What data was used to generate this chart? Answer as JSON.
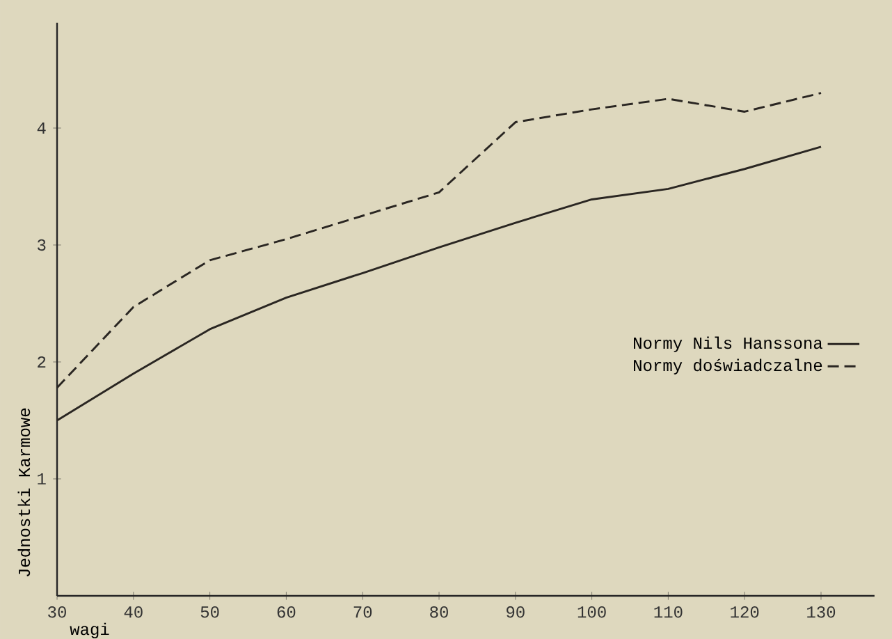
{
  "chart_data": {
    "type": "line",
    "xlabel": "wagi",
    "ylabel": "Jednostki Karmowe",
    "x": [
      30,
      40,
      50,
      60,
      70,
      80,
      90,
      100,
      110,
      120,
      130
    ],
    "series": [
      {
        "name": "Normy Nils Hanssona",
        "color": "#2a2622",
        "line_style": "solid",
        "values": [
          1.5,
          1.9,
          2.28,
          2.55,
          2.76,
          2.98,
          3.19,
          3.39,
          3.48,
          3.65,
          3.84
        ]
      },
      {
        "name": "Normy doświadczalne",
        "color": "#2a2622",
        "line_style": "dashed",
        "values": [
          1.78,
          2.47,
          2.87,
          3.05,
          3.25,
          3.45,
          4.05,
          4.16,
          4.25,
          4.14,
          4.3
        ]
      }
    ],
    "xlim": [
      30,
      137
    ],
    "ylim": [
      0,
      4.9
    ],
    "xticks": [
      30,
      40,
      50,
      60,
      70,
      80,
      90,
      100,
      110,
      120,
      130
    ],
    "yticks": [
      1,
      2,
      3,
      4
    ],
    "grid": false,
    "legend": "right",
    "marker": "none"
  }
}
